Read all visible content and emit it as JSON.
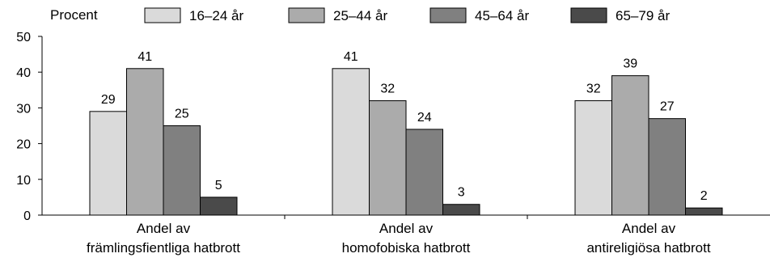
{
  "chart_data": {
    "type": "bar",
    "ylabel": "Procent",
    "ylim": [
      0,
      50
    ],
    "yticks": [
      0,
      10,
      20,
      30,
      40,
      50
    ],
    "grid": false,
    "legend_position": "top",
    "categories": [
      [
        "Andel av",
        "främlingsfientliga hatbrott"
      ],
      [
        "Andel av",
        "homofobiska hatbrott"
      ],
      [
        "Andel av",
        "antireligiösa hatbrott"
      ]
    ],
    "series": [
      {
        "name": "16–24 år",
        "color": "#dadada",
        "values": [
          29,
          41,
          32
        ]
      },
      {
        "name": "25–44 år",
        "color": "#ababab",
        "values": [
          41,
          32,
          39
        ]
      },
      {
        "name": "45–64 år",
        "color": "#808080",
        "values": [
          25,
          24,
          27
        ]
      },
      {
        "name": "65–79 år",
        "color": "#4a4a4a",
        "values": [
          5,
          3,
          2
        ]
      }
    ]
  }
}
